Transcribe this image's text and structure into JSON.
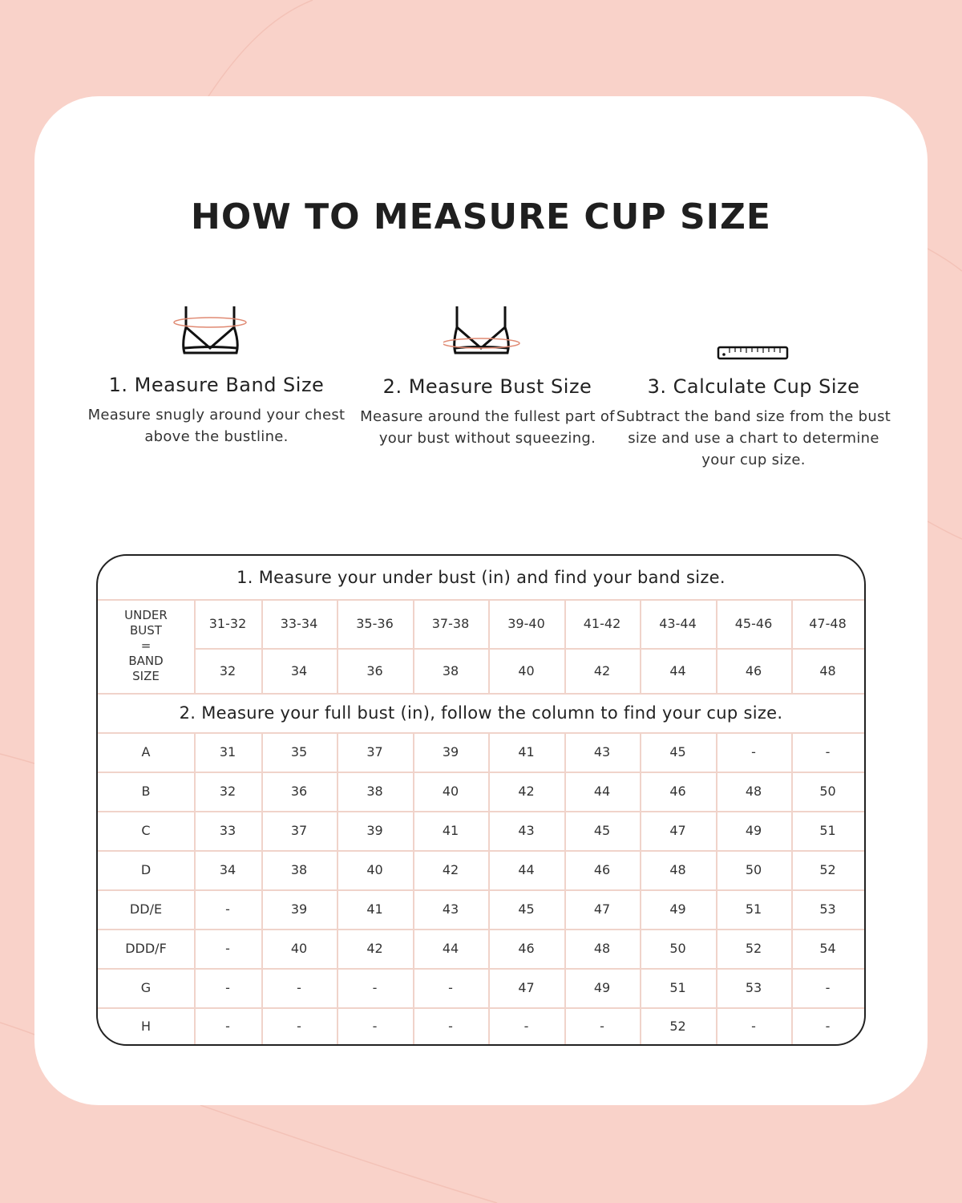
{
  "title": "HOW TO MEASURE CUP SIZE",
  "colors": {
    "background": "#f9d2c9",
    "card": "#ffffff",
    "accent": "#e08a73",
    "grid": "#f0d3ca"
  },
  "steps": [
    {
      "icon": "bra-band-measure-icon",
      "heading": "1. Measure Band Size",
      "text": "Measure snugly around your chest above the bustline."
    },
    {
      "icon": "bra-bust-measure-icon",
      "heading": "2. Measure Bust Size",
      "text": "Measure around the fullest part of your bust without squeezing."
    },
    {
      "icon": "ruler-icon",
      "heading": "3. Calculate Cup Size",
      "text": "Subtract the band size from the bust size and use a chart to determine your cup size."
    }
  ],
  "table": {
    "heading1": "1. Measure your under bust (in) and find your band size.",
    "band_label": [
      "UNDER",
      "BUST",
      "=",
      "BAND",
      "SIZE"
    ],
    "under_bust": [
      "31-32",
      "33-34",
      "35-36",
      "37-38",
      "39-40",
      "41-42",
      "43-44",
      "45-46",
      "47-48"
    ],
    "band_size": [
      "32",
      "34",
      "36",
      "38",
      "40",
      "42",
      "44",
      "46",
      "48"
    ],
    "heading2": "2. Measure your full bust (in), follow the column to find your cup size.",
    "cups": [
      {
        "cup": "A",
        "values": [
          "31",
          "35",
          "37",
          "39",
          "41",
          "43",
          "45",
          "-",
          "-"
        ]
      },
      {
        "cup": "B",
        "values": [
          "32",
          "36",
          "38",
          "40",
          "42",
          "44",
          "46",
          "48",
          "50"
        ]
      },
      {
        "cup": "C",
        "values": [
          "33",
          "37",
          "39",
          "41",
          "43",
          "45",
          "47",
          "49",
          "51"
        ]
      },
      {
        "cup": "D",
        "values": [
          "34",
          "38",
          "40",
          "42",
          "44",
          "46",
          "48",
          "50",
          "52"
        ]
      },
      {
        "cup": "DD/E",
        "values": [
          "-",
          "39",
          "41",
          "43",
          "45",
          "47",
          "49",
          "51",
          "53"
        ]
      },
      {
        "cup": "DDD/F",
        "values": [
          "-",
          "40",
          "42",
          "44",
          "46",
          "48",
          "50",
          "52",
          "54"
        ]
      },
      {
        "cup": "G",
        "values": [
          "-",
          "-",
          "-",
          "-",
          "47",
          "49",
          "51",
          "53",
          "-"
        ]
      },
      {
        "cup": "H",
        "values": [
          "-",
          "-",
          "-",
          "-",
          "-",
          "-",
          "52",
          "-",
          "-"
        ]
      }
    ]
  }
}
